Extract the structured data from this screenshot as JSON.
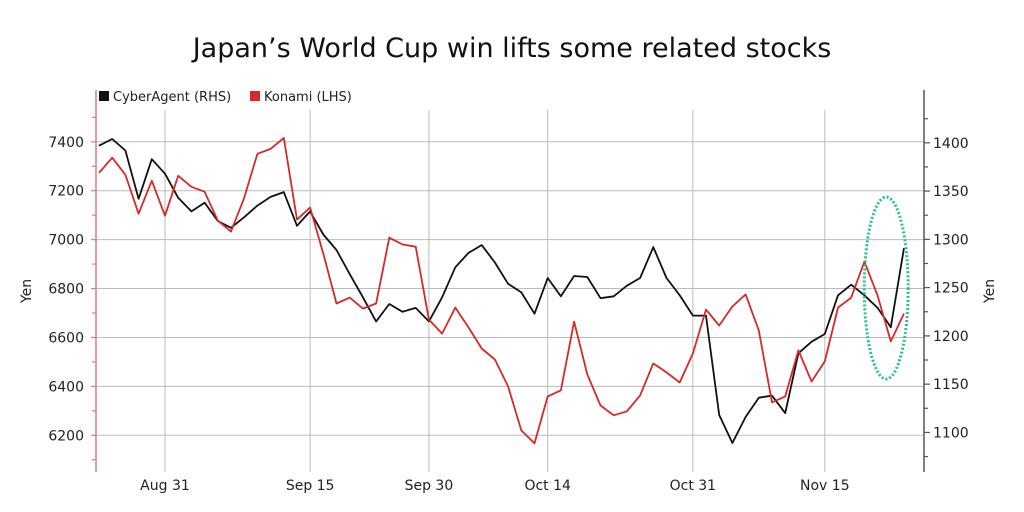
{
  "chart_data": {
    "type": "line",
    "title": "Japan’s World Cup win lifts some related stocks",
    "ylabel_left": "Yen",
    "ylabel_right": "Yen",
    "x": [
      "2022-08-24",
      "2022-08-25",
      "2022-08-26",
      "2022-08-29",
      "2022-08-30",
      "2022-08-31",
      "2022-09-01",
      "2022-09-02",
      "2022-09-05",
      "2022-09-06",
      "2022-09-07",
      "2022-09-08",
      "2022-09-09",
      "2022-09-12",
      "2022-09-13",
      "2022-09-14",
      "2022-09-15",
      "2022-09-16",
      "2022-09-20",
      "2022-09-21",
      "2022-09-22",
      "2022-09-26",
      "2022-09-27",
      "2022-09-28",
      "2022-09-29",
      "2022-09-30",
      "2022-10-03",
      "2022-10-04",
      "2022-10-05",
      "2022-10-06",
      "2022-10-07",
      "2022-10-11",
      "2022-10-12",
      "2022-10-13",
      "2022-10-14",
      "2022-10-17",
      "2022-10-18",
      "2022-10-19",
      "2022-10-20",
      "2022-10-21",
      "2022-10-24",
      "2022-10-25",
      "2022-10-26",
      "2022-10-27",
      "2022-10-28",
      "2022-10-31",
      "2022-11-01",
      "2022-11-02",
      "2022-11-04",
      "2022-11-07",
      "2022-11-08",
      "2022-11-09",
      "2022-11-10",
      "2022-11-11",
      "2022-11-14",
      "2022-11-15",
      "2022-11-16",
      "2022-11-17",
      "2022-11-18",
      "2022-11-21",
      "2022-11-22",
      "2022-11-24"
    ],
    "x_ticks": [
      {
        "date": "2022-08-31",
        "label": "Aug 31"
      },
      {
        "date": "2022-09-15",
        "label": "Sep 15"
      },
      {
        "date": "2022-09-30",
        "label": "Sep 30"
      },
      {
        "date": "2022-10-14",
        "label": "Oct 14"
      },
      {
        "date": "2022-10-31",
        "label": "Oct 31"
      },
      {
        "date": "2022-11-15",
        "label": "Nov 15"
      }
    ],
    "y_left": {
      "range": [
        6050,
        7530
      ],
      "ticks": [
        6200,
        6400,
        6600,
        6800,
        7000,
        7200,
        7400
      ],
      "tick_labels": [
        "6200",
        "6400",
        "6600",
        "6800",
        "7000",
        "7200",
        "7400"
      ]
    },
    "y_right": {
      "range": [
        1059,
        1434
      ],
      "ticks": [
        1100,
        1150,
        1200,
        1250,
        1300,
        1350,
        1400
      ],
      "tick_labels": [
        "1100",
        "1150",
        "1200",
        "1250",
        "1300",
        "1350",
        "1400"
      ]
    },
    "grid": true,
    "legend_position": "top-left",
    "series": [
      {
        "name": "CyberAgent (RHS)",
        "axis": "right",
        "color": "#111111",
        "values": [
          1397,
          1404,
          1392,
          1342,
          1383,
          1368,
          1343,
          1329,
          1338,
          1319,
          1312,
          1323,
          1335,
          1344,
          1349,
          1314,
          1329,
          1305,
          1289,
          1264,
          1240,
          1215,
          1233,
          1225,
          1229,
          1215,
          1240,
          1271,
          1286,
          1294,
          1276,
          1254,
          1245,
          1223,
          1260,
          1241,
          1262,
          1261,
          1239,
          1241,
          1252,
          1260,
          1292,
          1260,
          1242,
          1221,
          1221,
          1118,
          1089,
          1116,
          1136,
          1138,
          1120,
          1182,
          1194,
          1202,
          1242,
          1253,
          1242,
          1229,
          1209,
          1291
        ]
      },
      {
        "name": "Konami (LHS)",
        "axis": "left",
        "color": "#d42a2a",
        "values": [
          7273,
          7335,
          7265,
          7106,
          7241,
          7098,
          7261,
          7216,
          7196,
          7078,
          7033,
          7171,
          7351,
          7371,
          7416,
          7082,
          7131,
          6943,
          6739,
          6763,
          6718,
          6739,
          7008,
          6980,
          6971,
          6673,
          6616,
          6722,
          6641,
          6555,
          6510,
          6400,
          6220,
          6167,
          6359,
          6384,
          6665,
          6449,
          6322,
          6282,
          6298,
          6363,
          6494,
          6457,
          6416,
          6535,
          6714,
          6649,
          6727,
          6776,
          6629,
          6335,
          6359,
          6547,
          6420,
          6502,
          6722,
          6763,
          6910,
          6771,
          6584,
          6698
        ]
      }
    ],
    "annotation": {
      "shape": "dashed-ellipse",
      "color": "#2bbf8a",
      "around_dates": [
        "2022-11-18",
        "2022-11-24"
      ]
    },
    "left_axis_color": "#e07a7a",
    "right_axis_color": "#555555",
    "grid_color": "#bbbbbb"
  }
}
